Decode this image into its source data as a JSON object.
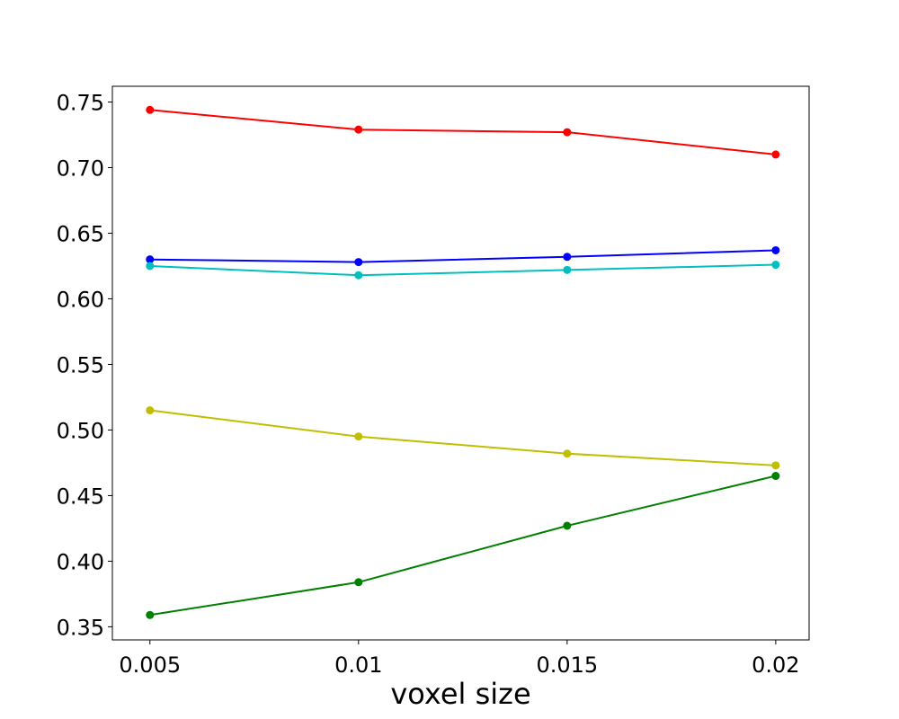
{
  "chart_data": {
    "type": "line",
    "xlabel": "voxel size",
    "ylabel": "",
    "x": [
      0.005,
      0.01,
      0.015,
      0.02
    ],
    "x_tick_labels": [
      "0.005",
      "0.01",
      "0.015",
      "0.02"
    ],
    "xlim": [
      0.0041,
      0.0208
    ],
    "ylim": [
      0.34,
      0.762
    ],
    "y_ticks": [
      0.35,
      0.4,
      0.45,
      0.5,
      0.55,
      0.6,
      0.65,
      0.7,
      0.75
    ],
    "y_tick_labels": [
      "0.35",
      "0.40",
      "0.45",
      "0.50",
      "0.55",
      "0.60",
      "0.65",
      "0.70",
      "0.75"
    ],
    "grid": false,
    "series": [
      {
        "color": "#ff0000",
        "values": [
          0.744,
          0.729,
          0.727,
          0.71
        ]
      },
      {
        "color": "#0000ff",
        "values": [
          0.63,
          0.628,
          0.632,
          0.637
        ]
      },
      {
        "color": "#00bfbf",
        "values": [
          0.625,
          0.618,
          0.622,
          0.626
        ]
      },
      {
        "color": "#bfbf00",
        "values": [
          0.515,
          0.495,
          0.482,
          0.473
        ]
      },
      {
        "color": "#008000",
        "values": [
          0.359,
          0.384,
          0.427,
          0.465
        ]
      }
    ]
  }
}
